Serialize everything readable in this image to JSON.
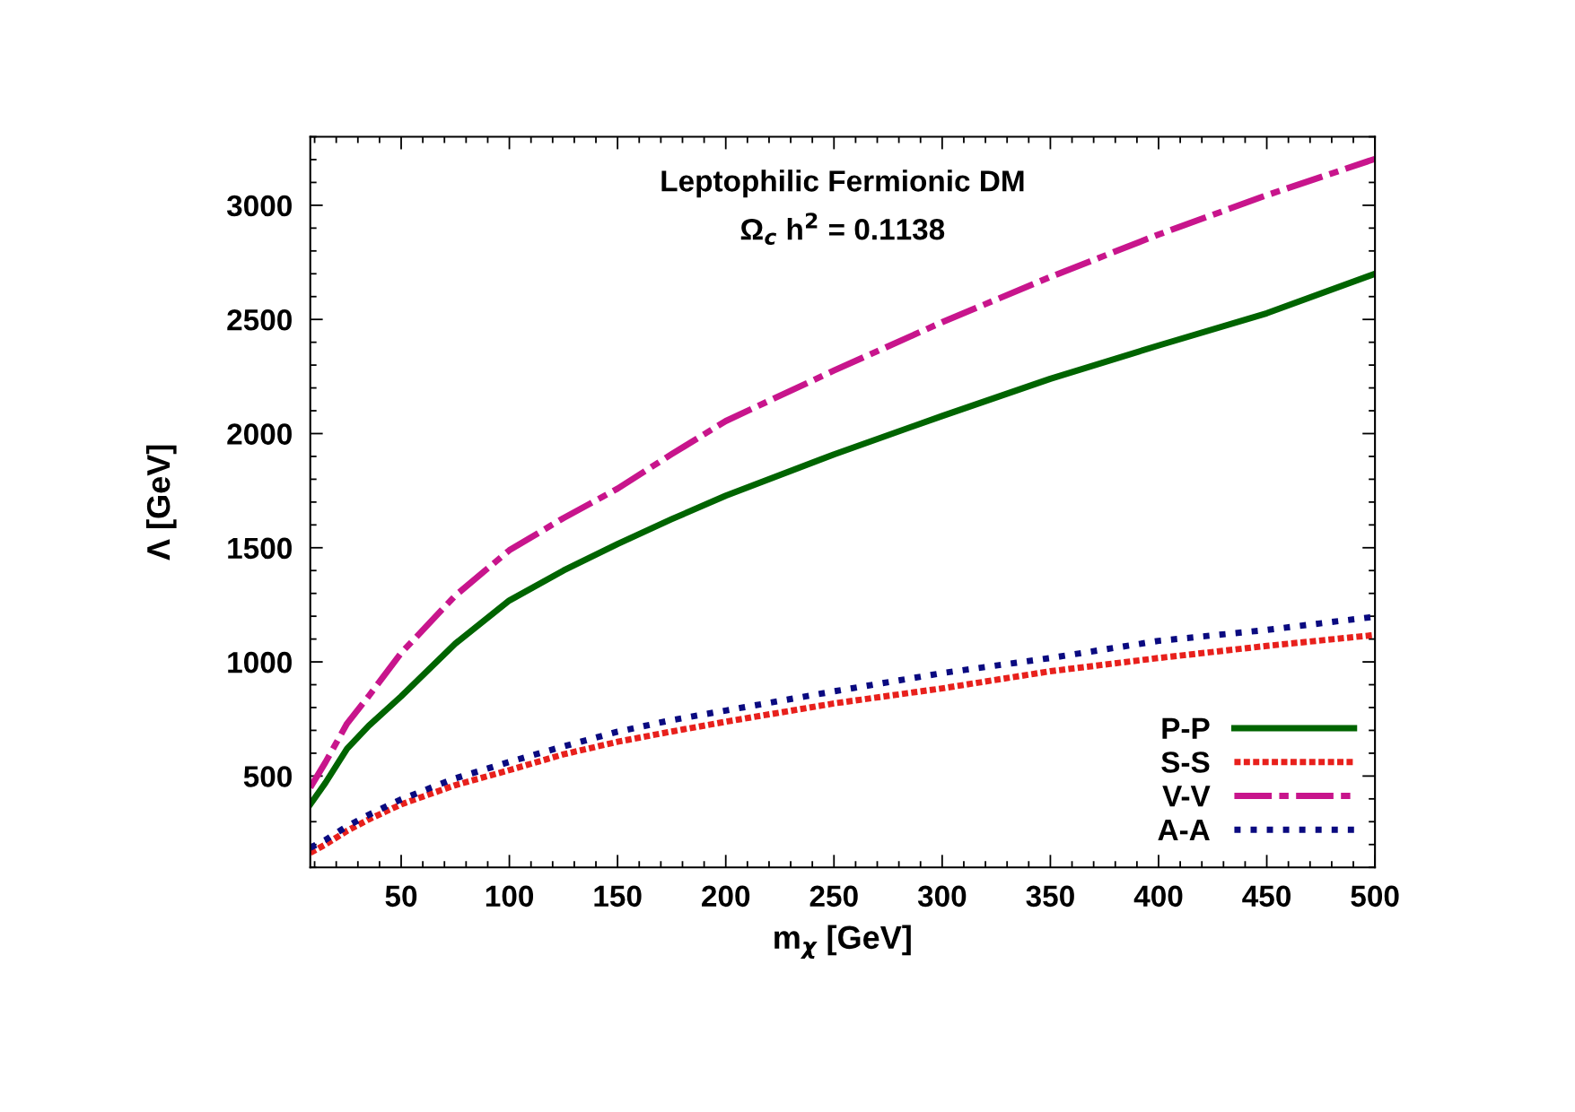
{
  "chart_data": {
    "type": "line",
    "title": "Leptophilic Fermionic DM",
    "subtitle": "Ω$_{c}$ h$^{2}$ = 0.1138",
    "xlabel": "m$_{χ}$ [GeV]",
    "ylabel": "Λ [GeV]",
    "x": [
      8,
      15,
      25,
      35,
      50,
      75,
      100,
      125,
      150,
      175,
      200,
      250,
      300,
      350,
      400,
      450,
      500
    ],
    "series": [
      {
        "name": "P-P",
        "color": "#006400",
        "line_style": "solid",
        "values": [
          376,
          470,
          620,
          720,
          849,
          1080,
          1269,
          1400,
          1516,
          1625,
          1728,
          1909,
          2077,
          2240,
          2386,
          2527,
          2700
        ]
      },
      {
        "name": "S-S",
        "color": "#e8201c",
        "line_style": "dotted",
        "values": [
          164,
          200,
          260,
          310,
          376,
          460,
          526,
          595,
          650,
          695,
          738,
          818,
          884,
          959,
          1017,
          1070,
          1118
        ]
      },
      {
        "name": "V-V",
        "color": "#c8158c",
        "line_style": "dashdot",
        "values": [
          450,
          560,
          730,
          850,
          1039,
          1290,
          1489,
          1630,
          1759,
          1910,
          2055,
          2276,
          2488,
          2686,
          2872,
          3044,
          3203
        ]
      },
      {
        "name": "A-A",
        "color": "#0a0a80",
        "line_style": "dotted",
        "values": [
          186,
          220,
          280,
          330,
          398,
          490,
          562,
          630,
          694,
          745,
          787,
          871,
          951,
          1017,
          1092,
          1140,
          1198
        ]
      }
    ],
    "xlim": [
      8,
      500
    ],
    "ylim": [
      100,
      3300
    ],
    "xticks": [
      50,
      100,
      150,
      200,
      250,
      300,
      350,
      400,
      450,
      500
    ],
    "yticks": [
      500,
      1000,
      1500,
      2000,
      2500,
      3000
    ],
    "grid": false,
    "legend": "bottom right",
    "marker": "none"
  }
}
